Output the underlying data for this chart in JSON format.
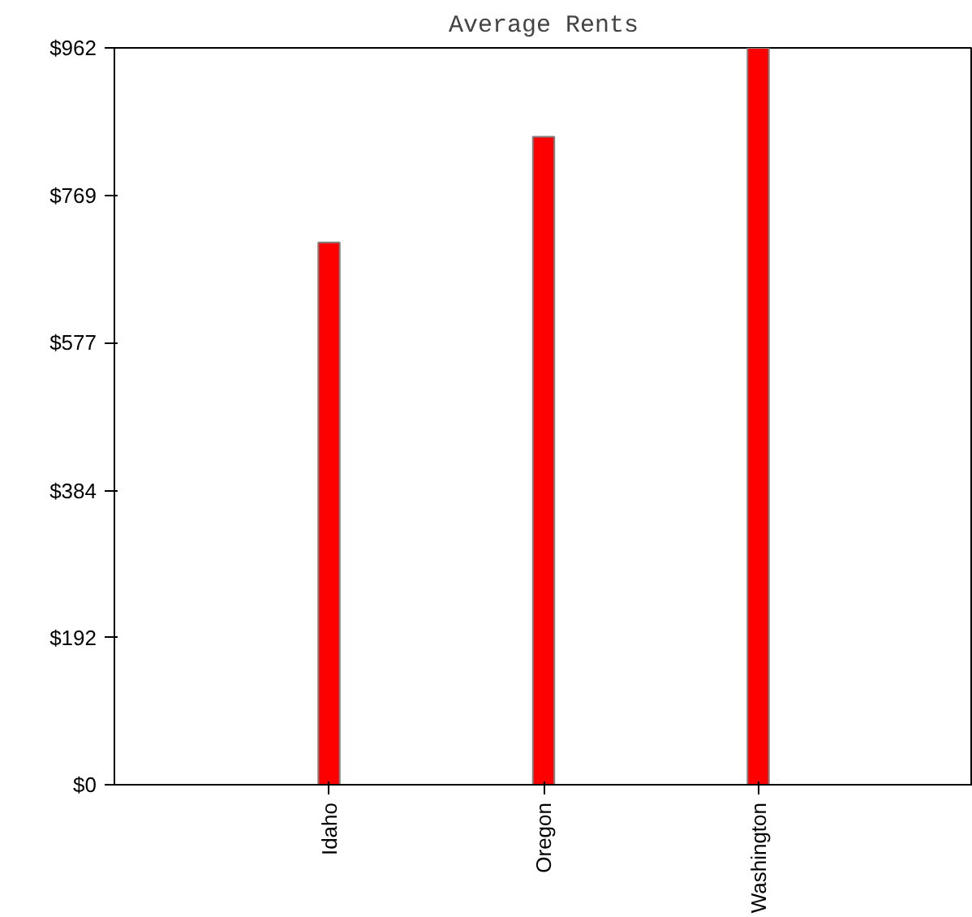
{
  "chart_data": {
    "type": "bar",
    "title": "Average Rents",
    "categories": [
      "Idaho",
      "Oregon",
      "Washington"
    ],
    "values": [
      708,
      846,
      962
    ],
    "color": "#ff0000",
    "ylim": [
      0,
      962
    ],
    "yticks": [
      {
        "value": 0,
        "label": "$0"
      },
      {
        "value": 192,
        "label": "$192"
      },
      {
        "value": 384,
        "label": "$384"
      },
      {
        "value": 577,
        "label": "$577"
      },
      {
        "value": 769,
        "label": "$769"
      },
      {
        "value": 962,
        "label": "$962"
      }
    ],
    "grid": false
  }
}
